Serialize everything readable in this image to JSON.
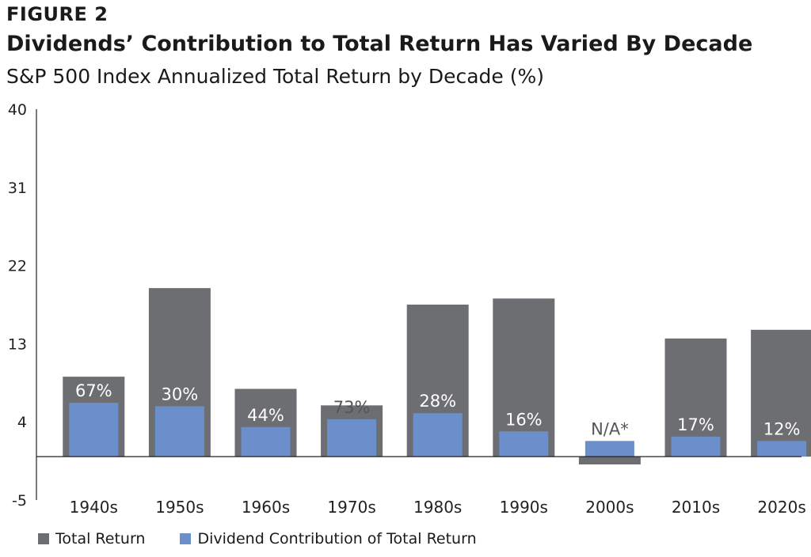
{
  "figure_label": "FIGURE 2",
  "title": "Dividends’ Contribution to Total Return Has Varied By Decade",
  "subtitle": "S&P 500 Index Annualized Total Return by Decade (%)",
  "colors": {
    "total_return": "#6d6e71",
    "dividend": "#6a8fcb",
    "label_light": "#ffffff",
    "label_dark": "#555555"
  },
  "chart_data": {
    "type": "bar",
    "title": "Dividends’ Contribution to Total Return Has Varied By Decade",
    "subtitle": "S&P 500 Index Annualized Total Return by Decade (%)",
    "categories": [
      "1940s",
      "1950s",
      "1960s",
      "1970s",
      "1980s",
      "1990s",
      "2000s",
      "2010s",
      "2020s"
    ],
    "series": [
      {
        "name": "Total Return",
        "values": [
          9.2,
          19.4,
          7.8,
          5.9,
          17.5,
          18.2,
          -0.9,
          13.6,
          14.6
        ]
      },
      {
        "name": "Dividend Contribution of Total Return",
        "values": [
          6.2,
          5.8,
          3.4,
          4.3,
          5.0,
          2.9,
          1.8,
          2.3,
          1.8
        ]
      }
    ],
    "bar_labels": [
      "67%",
      "30%",
      "44%",
      "73%",
      "28%",
      "16%",
      "N/A*",
      "17%",
      "12%"
    ],
    "y_ticks": [
      -5,
      4,
      13,
      22,
      31,
      40
    ],
    "ylim": [
      -5,
      40
    ],
    "legend_position": "bottom-left",
    "grid": false
  }
}
